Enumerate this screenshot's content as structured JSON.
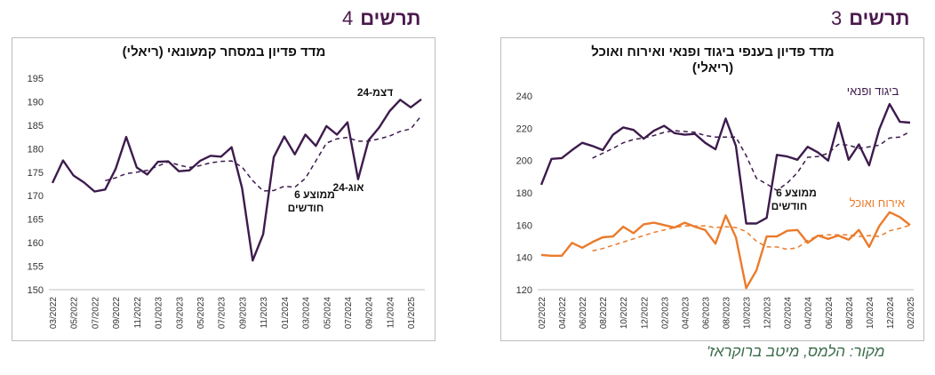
{
  "colors": {
    "purple": "#3d1b4d",
    "orange": "#ea7b2b",
    "title_accent": "#4b1a4d",
    "source": "#3a6b4a"
  },
  "left_figure": {
    "word": "תרשים",
    "number": "4"
  },
  "right_figure": {
    "word": "תרשים",
    "number": "3"
  },
  "source_note": "מקור: הלמס, מיטב ברוקראז'",
  "chart_data": [
    {
      "type": "line",
      "title": "מדד פדיון במסחר קמעונאי (ריאלי)",
      "xlabel": "",
      "ylabel": "",
      "ylim": [
        150,
        195
      ],
      "yticks": [
        150,
        155,
        160,
        165,
        170,
        175,
        180,
        185,
        190,
        195
      ],
      "x": [
        "03/2022",
        "04/2022",
        "05/2022",
        "06/2022",
        "07/2022",
        "08/2022",
        "09/2022",
        "10/2022",
        "11/2022",
        "12/2022",
        "01/2023",
        "02/2023",
        "03/2023",
        "04/2023",
        "05/2023",
        "06/2023",
        "07/2023",
        "08/2023",
        "09/2023",
        "10/2023",
        "11/2023",
        "12/2023",
        "01/2024",
        "02/2024",
        "03/2024",
        "04/2024",
        "05/2024",
        "06/2024",
        "07/2024",
        "08/2024",
        "09/2024",
        "10/2024",
        "11/2024",
        "12/2024",
        "01/2025",
        "02/2025"
      ],
      "xtick_labels": [
        "03/2022",
        "05/2022",
        "07/2022",
        "09/2022",
        "11/2022",
        "01/2023",
        "03/2023",
        "05/2023",
        "07/2023",
        "09/2023",
        "11/2023",
        "01/2024",
        "03/2024",
        "05/2024",
        "07/2024",
        "09/2024",
        "11/2024",
        "01/2025"
      ],
      "series": [
        {
          "style": "solid",
          "color": "#3d1b4d",
          "values": [
            172.7,
            177.5,
            174.3,
            172.8,
            170.9,
            171.3,
            175.7,
            182.5,
            176.0,
            174.5,
            177.2,
            177.3,
            175.2,
            175.4,
            177.4,
            178.5,
            178.3,
            180.3,
            171.6,
            156.2,
            161.8,
            178.2,
            182.6,
            178.8,
            183.0,
            180.6,
            184.8,
            183.0,
            185.6,
            173.5,
            181.8,
            184.5,
            188.0,
            190.4,
            188.8,
            190.5
          ]
        },
        {
          "style": "dashed",
          "color": "#3d1b4d",
          "values": [
            null,
            null,
            null,
            null,
            null,
            173.2,
            173.8,
            174.7,
            175.0,
            175.4,
            176.3,
            177.2,
            176.5,
            176.0,
            176.4,
            177.0,
            177.3,
            177.4,
            176.1,
            173.2,
            171.0,
            171.1,
            172.0,
            171.8,
            173.7,
            177.4,
            181.2,
            182.1,
            182.4,
            181.6,
            181.6,
            182.1,
            182.7,
            183.7,
            184.2,
            187.0
          ]
        }
      ],
      "annotations": [
        "דצמ-24",
        "אוג-24",
        "ממוצע 6",
        "חודשים"
      ]
    },
    {
      "type": "line",
      "title": "מדד פדיון בענפי ביגוד ופנאי ואירוח ואוכל",
      "subtitle": "(ריאלי)",
      "xlabel": "",
      "ylabel": "",
      "ylim": [
        120,
        240
      ],
      "yticks": [
        120,
        140,
        160,
        180,
        200,
        220,
        240
      ],
      "x": [
        "02/2022",
        "03/2022",
        "04/2022",
        "05/2022",
        "06/2022",
        "07/2022",
        "08/2022",
        "09/2022",
        "10/2022",
        "11/2022",
        "12/2022",
        "01/2023",
        "02/2023",
        "03/2023",
        "04/2023",
        "05/2023",
        "06/2023",
        "07/2023",
        "08/2023",
        "09/2023",
        "10/2023",
        "11/2023",
        "12/2023",
        "01/2024",
        "02/2024",
        "03/2024",
        "04/2024",
        "05/2024",
        "06/2024",
        "07/2024",
        "08/2024",
        "09/2024",
        "10/2024",
        "11/2024",
        "12/2024",
        "01/2025",
        "02/2025"
      ],
      "xtick_labels": [
        "02/2022",
        "04/2022",
        "06/2022",
        "08/2022",
        "10/2022",
        "12/2022",
        "02/2023",
        "04/2023",
        "06/2023",
        "08/2023",
        "10/2023",
        "12/2023",
        "02/2024",
        "04/2024",
        "06/2024",
        "08/2024",
        "10/2024",
        "12/2024",
        "02/2025"
      ],
      "series": [
        {
          "name": "ביגוד ופנאי",
          "style": "solid",
          "color": "#3d1b4d",
          "values": [
            185,
            201,
            201.5,
            206.5,
            211,
            209,
            206.5,
            216,
            220.5,
            219,
            213.5,
            218.5,
            221.5,
            217,
            216,
            216.5,
            211,
            207,
            226,
            209,
            161,
            161,
            164.5,
            203.5,
            202.5,
            200.5,
            208.5,
            205,
            200,
            223.5,
            200.5,
            210,
            197,
            219.5,
            235,
            224,
            223.5
          ]
        },
        {
          "style": "dashed",
          "color": "#3d1b4d",
          "values": [
            null,
            null,
            null,
            null,
            null,
            201.5,
            204.5,
            207.5,
            211,
            213,
            214,
            215.5,
            217.5,
            218.5,
            218,
            217.5,
            215.5,
            214.5,
            214.5,
            214.5,
            203,
            189,
            185.5,
            181.5,
            186,
            192.5,
            202,
            202.5,
            204.5,
            210,
            209.5,
            207.5,
            208.5,
            209.5,
            214,
            214.5,
            218
          ]
        },
        {
          "name": "אירוח ואוכל",
          "style": "solid",
          "color": "#ea7b2b",
          "values": [
            141.5,
            141,
            141,
            149,
            146,
            149.5,
            152.5,
            153,
            159,
            155,
            160.5,
            161.5,
            160,
            158.5,
            161.5,
            159,
            157,
            148.5,
            166,
            152.5,
            121,
            132,
            153,
            153,
            156.5,
            157,
            149,
            153.5,
            151.5,
            153.5,
            151,
            157,
            146.5,
            159.5,
            168,
            165,
            160
          ]
        },
        {
          "style": "dashed",
          "color": "#ea7b2b",
          "values": [
            null,
            null,
            null,
            null,
            null,
            144,
            145.5,
            147.5,
            149.5,
            151.5,
            153.5,
            155.5,
            157,
            158.5,
            159.5,
            159.5,
            159.5,
            158.5,
            159,
            158.5,
            156,
            150,
            146.5,
            146.5,
            145,
            146,
            150.5,
            153.5,
            154,
            154,
            154,
            153,
            153.5,
            153,
            156.5,
            158,
            160
          ]
        }
      ],
      "annotations": [
        "ממוצע 6",
        "חודשים"
      ]
    }
  ]
}
